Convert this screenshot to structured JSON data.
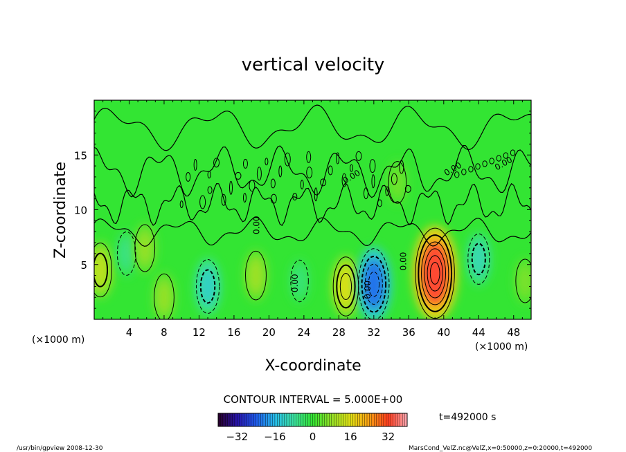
{
  "chart_data": {
    "type": "heatmap",
    "title": "vertical velocity",
    "xlabel": "X-coordinate",
    "ylabel": "Z-coordinate",
    "x_unit": "(×1000 m)",
    "y_unit": "(×1000 m)",
    "xlim": [
      0,
      50
    ],
    "ylim": [
      0,
      20
    ],
    "x_ticks": [
      4,
      8,
      12,
      16,
      20,
      24,
      28,
      32,
      36,
      40,
      44,
      48
    ],
    "y_ticks": [
      5,
      10,
      15
    ],
    "contour_interval": "CONTOUR INTERVAL = 5.000E+00",
    "contour_label": "0.00",
    "colorbar": {
      "min": -40,
      "max": 40,
      "ticks": [
        -32,
        -16,
        0,
        16,
        32
      ]
    },
    "time_label": "t=492000 s",
    "features": [
      {
        "x": 0.7,
        "z": 4.5,
        "value": 12
      },
      {
        "x": 3.7,
        "z": 6.0,
        "value": -6
      },
      {
        "x": 5.8,
        "z": 6.5,
        "value": 8
      },
      {
        "x": 8.0,
        "z": 2.0,
        "value": 8
      },
      {
        "x": 13.0,
        "z": 3.0,
        "value": -12
      },
      {
        "x": 18.5,
        "z": 4.0,
        "value": 9
      },
      {
        "x": 23.5,
        "z": 3.5,
        "value": -5
      },
      {
        "x": 28.8,
        "z": 3.0,
        "value": 15
      },
      {
        "x": 32.0,
        "z": 3.2,
        "value": -22
      },
      {
        "x": 34.7,
        "z": 12.5,
        "value": 5
      },
      {
        "x": 39.0,
        "z": 4.2,
        "value": 33
      },
      {
        "x": 44.0,
        "z": 5.5,
        "value": -10
      },
      {
        "x": 49.3,
        "z": 3.5,
        "value": 6
      }
    ]
  },
  "footer": {
    "left": "/usr/bin/gpview   2008-12-30",
    "right": "MarsCond_VelZ.nc@VelZ,x=0:50000,z=0:20000,t=492000"
  },
  "colors": {
    "background_field": "#33e533",
    "low": "#1a1aa0",
    "mid": "#33e533",
    "high": "#ff2020"
  }
}
